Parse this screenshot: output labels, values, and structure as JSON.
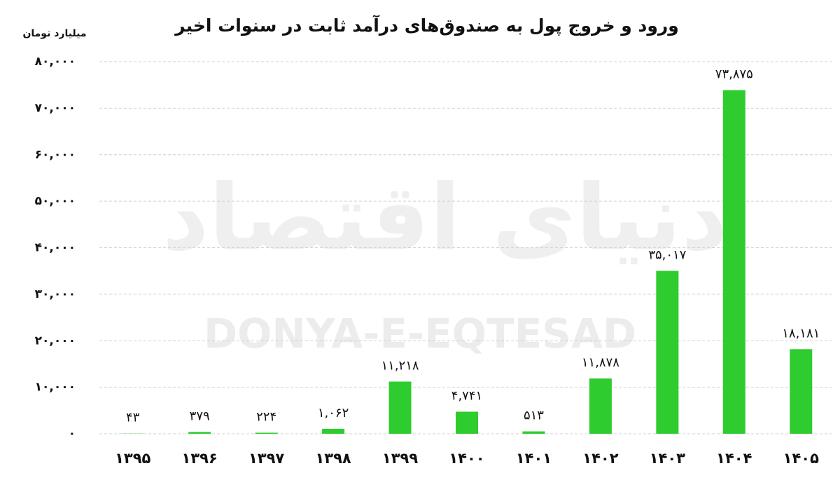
{
  "chart_data": {
    "type": "bar",
    "title": "ورود و خروج پول به صندوق‌های درآمد ثابت در سنوات اخیر",
    "y_label": "میلیارد تومان",
    "watermark": [
      "دنیای اقتصاد",
      "DONYA-E-EQTESAD"
    ],
    "categories": [
      "۱۳۹۵",
      "۱۳۹۶",
      "۱۳۹۷",
      "۱۳۹۸",
      "۱۳۹۹",
      "۱۴۰۰",
      "۱۴۰۱",
      "۱۴۰۲",
      "۱۴۰۳",
      "۱۴۰۴",
      "۱۴۰۵"
    ],
    "values": [
      43,
      379,
      224,
      1062,
      11218,
      4741,
      513,
      11878,
      35017,
      73875,
      18181
    ],
    "value_labels": [
      "۴۳",
      "۳۷۹",
      "۲۲۴",
      "۱,۰۶۲",
      "۱۱,۲۱۸",
      "۴,۷۴۱",
      "۵۱۳",
      "۱۱,۸۷۸",
      "۳۵,۰۱۷",
      "۷۳,۸۷۵",
      "۱۸,۱۸۱"
    ],
    "color": "#2ecc2e",
    "ylim": [
      0,
      80000
    ],
    "yticks": [
      {
        "value": 0,
        "label": "۰"
      },
      {
        "value": 10000,
        "label": "۱۰,۰۰۰"
      },
      {
        "value": 20000,
        "label": "۲۰,۰۰۰"
      },
      {
        "value": 30000,
        "label": "۳۰,۰۰۰"
      },
      {
        "value": 40000,
        "label": "۴۰,۰۰۰"
      },
      {
        "value": 50000,
        "label": "۵۰,۰۰۰"
      },
      {
        "value": 60000,
        "label": "۶۰,۰۰۰"
      },
      {
        "value": 70000,
        "label": "۷۰,۰۰۰"
      },
      {
        "value": 80000,
        "label": "۸۰,۰۰۰"
      }
    ],
    "grid": true
  }
}
